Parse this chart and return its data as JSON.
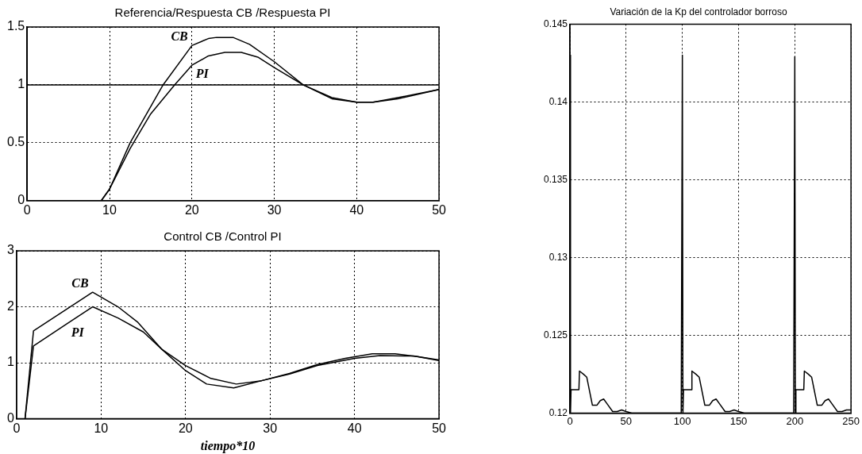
{
  "chart_data": [
    {
      "type": "line",
      "title": "Referencia/Respuesta CB /Respuesta PI",
      "xlim": [
        0,
        50
      ],
      "xticks": [
        0,
        10,
        20,
        30,
        40,
        50
      ],
      "ylim": [
        0,
        1.5
      ],
      "yticks": [
        0,
        0.5,
        1,
        1.5
      ],
      "grid": true,
      "line_style": "solid",
      "marker": "none",
      "series": [
        {
          "color": "#000000",
          "x": [
            0,
            50
          ],
          "values": [
            1,
            1
          ]
        },
        {
          "color": "#000000",
          "x": [
            0,
            9,
            10,
            12.5,
            16.5,
            20,
            22,
            23,
            25,
            27,
            30,
            33.5,
            37,
            40,
            42,
            45,
            50
          ],
          "values": [
            0,
            0,
            0.1,
            0.5,
            1.0,
            1.34,
            1.4,
            1.41,
            1.41,
            1.35,
            1.2,
            1.0,
            0.88,
            0.85,
            0.85,
            0.89,
            0.96
          ]
        },
        {
          "color": "#000000",
          "x": [
            0,
            9,
            10,
            12.5,
            15,
            17.9,
            20,
            22,
            24,
            26,
            28,
            30,
            33.5,
            37,
            40,
            42,
            45,
            50
          ],
          "values": [
            0,
            0,
            0.1,
            0.45,
            0.75,
            1.0,
            1.17,
            1.25,
            1.28,
            1.28,
            1.24,
            1.15,
            1.0,
            0.89,
            0.85,
            0.85,
            0.88,
            0.96
          ]
        }
      ],
      "annotations": [
        {
          "text": "CB",
          "x": 20,
          "y": 1.34
        },
        {
          "text": "PI",
          "x": 20,
          "y": 1.17
        }
      ]
    },
    {
      "type": "line",
      "title": "Control CB /Control PI",
      "xlabel": "tiempo*10",
      "xlim": [
        0,
        50
      ],
      "xticks": [
        0,
        10,
        20,
        30,
        40,
        50
      ],
      "ylim": [
        0,
        3
      ],
      "yticks": [
        0,
        1,
        2,
        3
      ],
      "grid": true,
      "line_style": "solid",
      "marker": "none",
      "series": [
        {
          "color": "#000000",
          "x": [
            1,
            2,
            9,
            12,
            14.3,
            17.2,
            20,
            22.5,
            25.7,
            29,
            32.3,
            35.6,
            38.9,
            42.1,
            44.8,
            47.4,
            50
          ],
          "values": [
            0,
            1.57,
            2.26,
            2.0,
            1.73,
            1.24,
            0.86,
            0.62,
            0.55,
            0.68,
            0.81,
            0.97,
            1.08,
            1.16,
            1.16,
            1.11,
            1.04
          ]
        },
        {
          "color": "#000000",
          "x": [
            1,
            2,
            6,
            9,
            12,
            15,
            17.2,
            20,
            23,
            26,
            29,
            32.3,
            35.6,
            40,
            43,
            47,
            50
          ],
          "values": [
            0,
            1.3,
            1.7,
            2.0,
            1.8,
            1.55,
            1.24,
            0.95,
            0.72,
            0.62,
            0.68,
            0.8,
            0.95,
            1.08,
            1.13,
            1.12,
            1.05
          ]
        }
      ],
      "annotations": [
        {
          "text": "CB",
          "x": 9,
          "y": 2.26
        },
        {
          "text": "PI",
          "x": 6,
          "y": 1.7
        }
      ]
    },
    {
      "type": "line",
      "title": "Variación de la Kp del controlador borroso",
      "xlim": [
        0,
        250
      ],
      "xticks": [
        0,
        50,
        100,
        150,
        200,
        250
      ],
      "ylim": [
        0.12,
        0.145
      ],
      "yticks": [
        0.12,
        0.125,
        0.13,
        0.135,
        0.14,
        0.145
      ],
      "grid": true,
      "line_style": "solid",
      "marker": "none",
      "series": [
        {
          "color": "#000000",
          "x": [
            0,
            0.5,
            1,
            8,
            8.5,
            12,
            15,
            20,
            24,
            27,
            30,
            33,
            38,
            42,
            46,
            50,
            55,
            65,
            99,
            100,
            100.5,
            101,
            108,
            108.5,
            112,
            115,
            120,
            124,
            127,
            130,
            133,
            138,
            142,
            146,
            150,
            155,
            165,
            199,
            200,
            200.5,
            201,
            208,
            208.5,
            212,
            215,
            220,
            224,
            227,
            230,
            233,
            238,
            242,
            246,
            250
          ],
          "values": [
            0.143,
            0.12,
            0.1215,
            0.1215,
            0.1227,
            0.1225,
            0.1223,
            0.1205,
            0.1205,
            0.1208,
            0.1209,
            0.1206,
            0.1201,
            0.1201,
            0.1202,
            0.1201,
            0.12,
            0.12,
            0.12,
            0.143,
            0.12,
            0.1215,
            0.1215,
            0.1227,
            0.1225,
            0.1223,
            0.1205,
            0.1205,
            0.1208,
            0.1209,
            0.1206,
            0.1201,
            0.1201,
            0.1202,
            0.1201,
            0.12,
            0.12,
            0.12,
            0.1429,
            0.12,
            0.1215,
            0.1215,
            0.1227,
            0.1225,
            0.1223,
            0.1205,
            0.1205,
            0.1208,
            0.1209,
            0.1206,
            0.1201,
            0.1201,
            0.1202,
            0.1202
          ]
        }
      ]
    }
  ]
}
